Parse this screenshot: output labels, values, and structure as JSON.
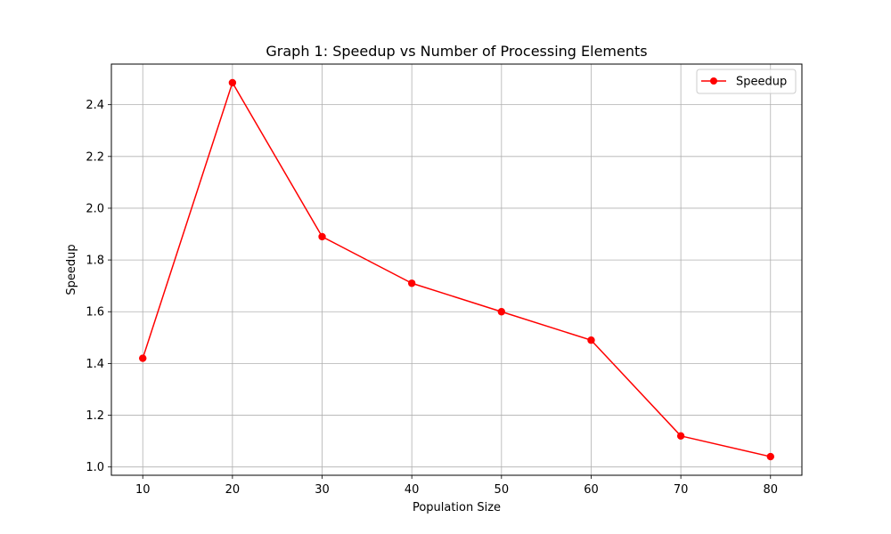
{
  "chart_data": {
    "type": "line",
    "title": "Graph 1: Speedup vs Number of Processing Elements",
    "xlabel": "Population Size",
    "ylabel": "Speedup",
    "x": [
      10,
      20,
      30,
      40,
      50,
      60,
      70,
      80
    ],
    "series": [
      {
        "name": "Speedup",
        "values": [
          1.42,
          2.485,
          1.89,
          1.71,
          1.6,
          1.49,
          1.12,
          1.04
        ],
        "color": "#ff0000",
        "marker": "circle"
      }
    ],
    "xticks": [
      10,
      20,
      30,
      40,
      50,
      60,
      70,
      80
    ],
    "yticks": [
      1.0,
      1.2,
      1.4,
      1.6,
      1.8,
      2.0,
      2.2,
      2.4
    ],
    "ytick_labels": [
      "1.0",
      "1.2",
      "1.4",
      "1.6",
      "1.8",
      "2.0",
      "2.2",
      "2.4"
    ],
    "xlim": [
      6.5,
      83.5
    ],
    "ylim": [
      0.968,
      2.557
    ],
    "grid": true,
    "legend_position": "top-right"
  }
}
